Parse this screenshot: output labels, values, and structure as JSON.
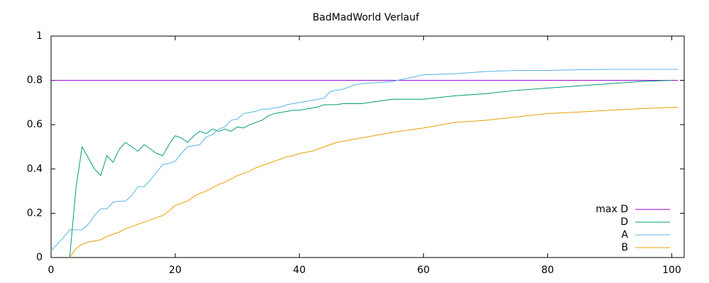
{
  "chart_data": {
    "type": "line",
    "title": "BadMadWorld Verlauf",
    "x": [
      0,
      1,
      2,
      3,
      4,
      5,
      6,
      7,
      8,
      9,
      10,
      11,
      12,
      13,
      14,
      15,
      16,
      17,
      18,
      19,
      20,
      21,
      22,
      23,
      24,
      25,
      26,
      27,
      28,
      29,
      30,
      31,
      32,
      33,
      34,
      35,
      36,
      37,
      38,
      39,
      40,
      41,
      42,
      43,
      44,
      45,
      46,
      47,
      48,
      49,
      50,
      55,
      60,
      65,
      70,
      75,
      80,
      85,
      90,
      95,
      100,
      101
    ],
    "series": [
      {
        "name": "max D",
        "color": "#9400d3",
        "values": [
          0.8,
          0.8,
          0.8,
          0.8,
          0.8,
          0.8,
          0.8,
          0.8,
          0.8,
          0.8,
          0.8,
          0.8,
          0.8,
          0.8,
          0.8,
          0.8,
          0.8,
          0.8,
          0.8,
          0.8,
          0.8,
          0.8,
          0.8,
          0.8,
          0.8,
          0.8,
          0.8,
          0.8,
          0.8,
          0.8,
          0.8,
          0.8,
          0.8,
          0.8,
          0.8,
          0.8,
          0.8,
          0.8,
          0.8,
          0.8,
          0.8,
          0.8,
          0.8,
          0.8,
          0.8,
          0.8,
          0.8,
          0.8,
          0.8,
          0.8,
          0.8,
          0.8,
          0.8,
          0.8,
          0.8,
          0.8,
          0.8,
          0.8,
          0.8,
          0.8,
          0.8,
          0.8
        ]
      },
      {
        "name": "D",
        "color": "#009e73",
        "values": [
          null,
          null,
          null,
          0,
          0.31,
          0.5,
          0.45,
          0.4,
          0.37,
          0.46,
          0.43,
          0.49,
          0.52,
          0.5,
          0.48,
          0.51,
          0.49,
          0.47,
          0.46,
          0.51,
          0.55,
          0.54,
          0.52,
          0.55,
          0.57,
          0.56,
          0.58,
          0.57,
          0.58,
          0.57,
          0.59,
          0.585,
          0.6,
          0.61,
          0.62,
          0.64,
          0.65,
          0.655,
          0.66,
          0.665,
          0.665,
          0.67,
          0.675,
          0.68,
          0.69,
          0.69,
          0.69,
          0.695,
          0.695,
          0.695,
          0.695,
          0.715,
          0.715,
          0.73,
          0.74,
          0.755,
          0.765,
          0.775,
          0.785,
          0.795,
          0.8,
          null
        ]
      },
      {
        "name": "A",
        "color": "#56b4e9",
        "values": [
          0.03,
          0.06,
          0.09,
          0.125,
          0.125,
          0.125,
          0.15,
          0.19,
          0.22,
          0.22,
          0.25,
          0.255,
          0.255,
          0.28,
          0.32,
          0.32,
          0.35,
          0.385,
          0.42,
          0.425,
          0.435,
          0.47,
          0.5,
          0.505,
          0.51,
          0.545,
          0.555,
          0.58,
          0.59,
          0.62,
          0.625,
          0.65,
          0.655,
          0.66,
          0.67,
          0.67,
          0.675,
          0.68,
          0.69,
          0.695,
          0.7,
          0.705,
          0.71,
          0.715,
          0.72,
          0.75,
          0.755,
          0.76,
          0.77,
          0.78,
          0.785,
          0.795,
          0.825,
          0.83,
          0.84,
          0.845,
          0.845,
          0.848,
          0.85,
          0.85,
          0.85,
          0.85
        ]
      },
      {
        "name": "B",
        "color": "#e69f00",
        "values": [
          null,
          null,
          null,
          0,
          0.04,
          0.06,
          0.07,
          0.075,
          0.08,
          0.095,
          0.105,
          0.115,
          0.13,
          0.14,
          0.15,
          0.16,
          0.17,
          0.18,
          0.19,
          0.21,
          0.235,
          0.245,
          0.255,
          0.275,
          0.29,
          0.3,
          0.315,
          0.33,
          0.34,
          0.355,
          0.37,
          0.38,
          0.39,
          0.405,
          0.415,
          0.425,
          0.435,
          0.445,
          0.455,
          0.46,
          0.47,
          0.475,
          0.48,
          0.49,
          0.5,
          0.51,
          0.52,
          0.525,
          0.53,
          0.535,
          0.54,
          0.565,
          0.585,
          0.61,
          0.62,
          0.635,
          0.65,
          0.657,
          0.665,
          0.672,
          0.678,
          0.678
        ]
      }
    ],
    "xlim": [
      0,
      102
    ],
    "xticks": [
      0,
      20,
      40,
      60,
      80,
      100
    ],
    "ylim": [
      0,
      1
    ],
    "yticks": [
      0,
      0.2,
      0.4,
      0.6,
      0.8,
      1
    ],
    "grid": false,
    "legend": "bottom-right"
  }
}
